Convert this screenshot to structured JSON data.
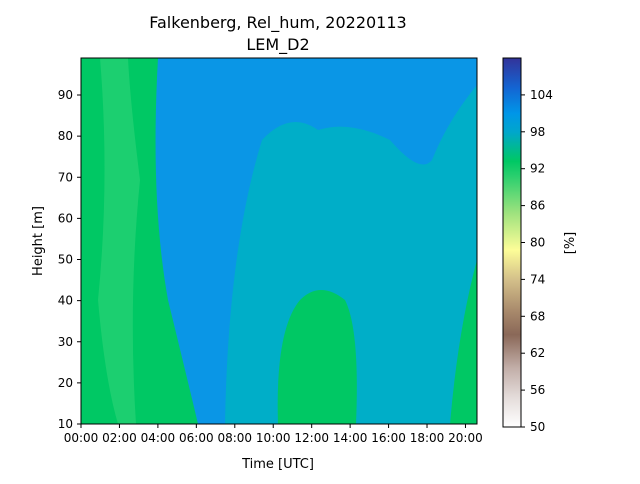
{
  "chart_data": {
    "type": "heatmap",
    "title": [
      "Falkenberg, Rel_hum, 20220113",
      "LEM_D2"
    ],
    "xlabel": "Time [UTC]",
    "ylabel": "Height [m]",
    "colorbar_label": "[%]",
    "x_ticks": [
      "00:00",
      "02:00",
      "04:00",
      "06:00",
      "08:00",
      "10:00",
      "12:00",
      "14:00",
      "16:00",
      "18:00",
      "20:00"
    ],
    "xlim_hours": [
      0,
      20.6
    ],
    "y_ticks": [
      10,
      20,
      30,
      40,
      50,
      60,
      70,
      80,
      90
    ],
    "ylim": [
      10,
      99
    ],
    "colorbar_ticks": [
      50,
      56,
      62,
      68,
      74,
      80,
      86,
      92,
      98,
      104
    ],
    "colorbar_range": [
      50,
      110
    ],
    "colormap": "terrain_r",
    "grid": false,
    "colors": {
      "blue": "#0a96e6",
      "teal": "#00aec8",
      "green": "#00c864",
      "light_green": "#26d174"
    }
  }
}
